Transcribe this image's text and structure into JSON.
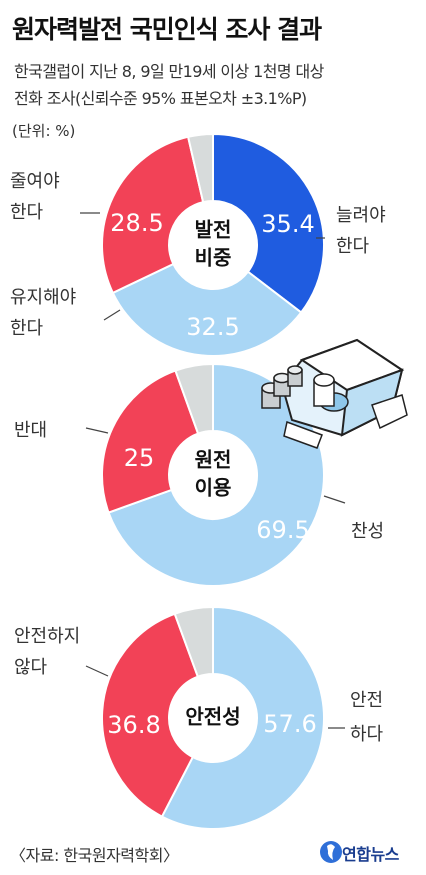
{
  "title": "원자력발전 국민인식 조사 결과",
  "subtitle_line1": "한국갤럽이 지난 8, 9일 만19세 이상 1천명 대상",
  "subtitle_line2": "전화 조사(신뢰수준 95% 표본오차 ±3.1%P)",
  "unit": "(단위: %)",
  "source": "〈자료: 한국원자력학회〉",
  "brand": "연합뉴스",
  "colors": {
    "blue": "#1f5ce0",
    "light_blue": "#a9d6f5",
    "red": "#f24257",
    "gray": "#d7dbdb"
  },
  "chart_data": [
    {
      "type": "pie",
      "center_label": [
        "발전",
        "비중"
      ],
      "slices": [
        {
          "label": "늘려야 한다",
          "label_lines": [
            "늘려야",
            "한다"
          ],
          "value": 35.4,
          "value_text": "35.4",
          "color": "#1f5ce0"
        },
        {
          "label": "유지해야 한다",
          "label_lines": [
            "유지해야",
            "한다"
          ],
          "value": 32.5,
          "value_text": "32.5",
          "color": "#a9d6f5"
        },
        {
          "label": "줄여야 한다",
          "label_lines": [
            "줄여야",
            "한다"
          ],
          "value": 28.5,
          "value_text": "28.5",
          "color": "#f24257"
        },
        {
          "label": "",
          "value": 3.6,
          "value_text": "",
          "color": "#d7dbdb"
        }
      ]
    },
    {
      "type": "pie",
      "center_label": [
        "원전",
        "이용"
      ],
      "slices": [
        {
          "label": "찬성",
          "label_lines": [
            "찬성"
          ],
          "value": 69.5,
          "value_text": "69.5",
          "color": "#a9d6f5"
        },
        {
          "label": "반대",
          "label_lines": [
            "반대"
          ],
          "value": 25,
          "value_text": "25",
          "color": "#f24257"
        },
        {
          "label": "",
          "value": 5.5,
          "value_text": "",
          "color": "#d7dbdb"
        }
      ]
    },
    {
      "type": "pie",
      "center_label": [
        "안전성"
      ],
      "slices": [
        {
          "label": "안전하다",
          "label_lines": [
            "안전",
            "하다"
          ],
          "value": 57.6,
          "value_text": "57.6",
          "color": "#a9d6f5"
        },
        {
          "label": "안전하지 않다",
          "label_lines": [
            "안전하지",
            "않다"
          ],
          "value": 36.8,
          "value_text": "36.8",
          "color": "#f24257"
        },
        {
          "label": "",
          "value": 5.6,
          "value_text": "",
          "color": "#d7dbdb"
        }
      ]
    }
  ]
}
